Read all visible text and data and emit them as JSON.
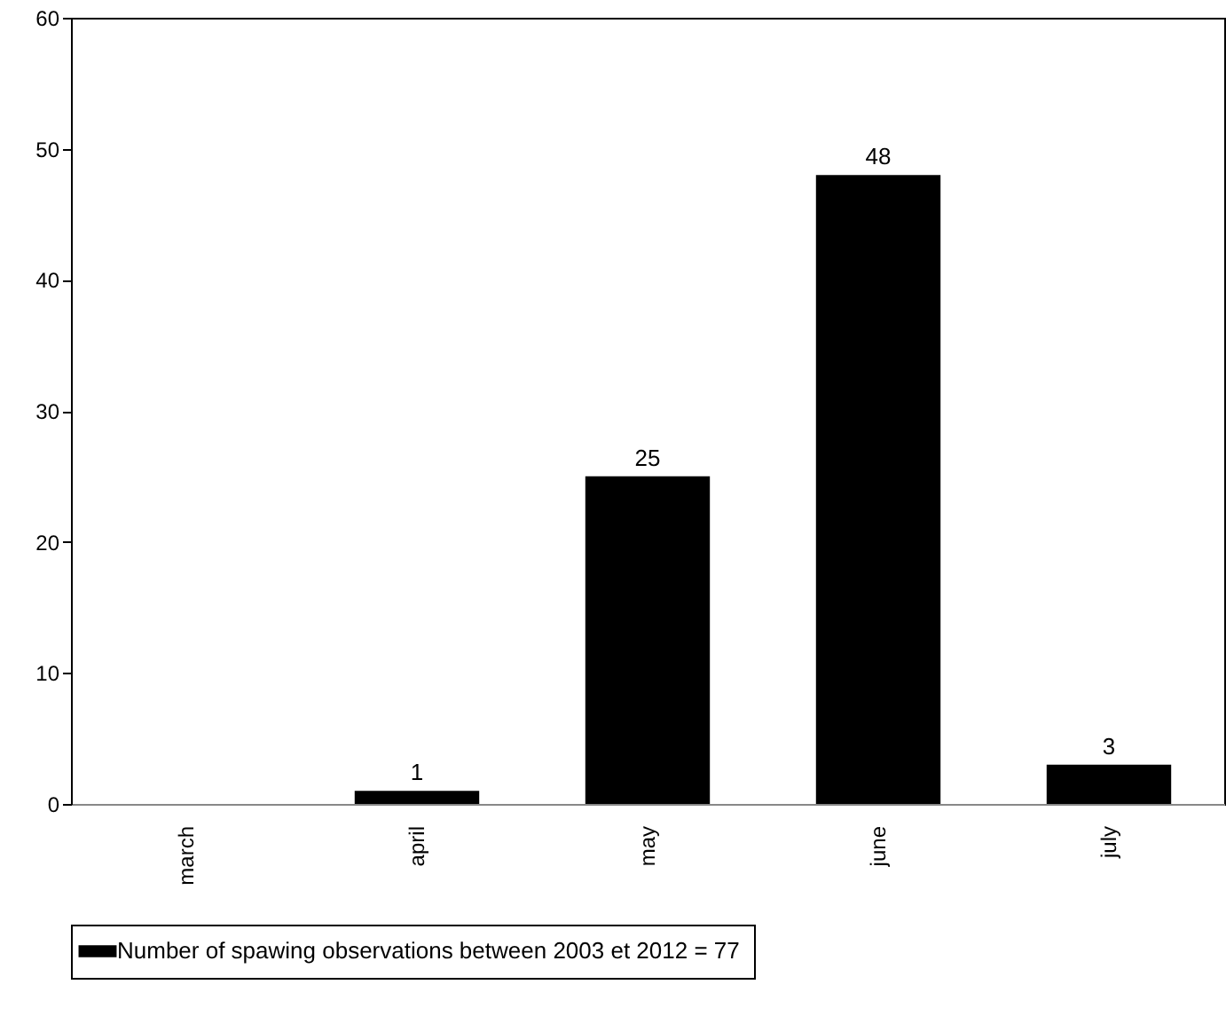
{
  "chart_data": {
    "type": "bar",
    "categories": [
      "march",
      "april",
      "may",
      "june",
      "july"
    ],
    "series": [
      {
        "name": "Number of spawing observations between 2003 et 2012 = 77",
        "color": "#000000",
        "values": [
          0,
          1,
          25,
          48,
          3
        ],
        "value_labels": [
          null,
          "1",
          "25",
          "48",
          "3"
        ]
      }
    ],
    "ylim": [
      0,
      60
    ],
    "yticks": [
      0,
      10,
      20,
      30,
      40,
      50,
      60
    ],
    "legend": "bottom"
  }
}
